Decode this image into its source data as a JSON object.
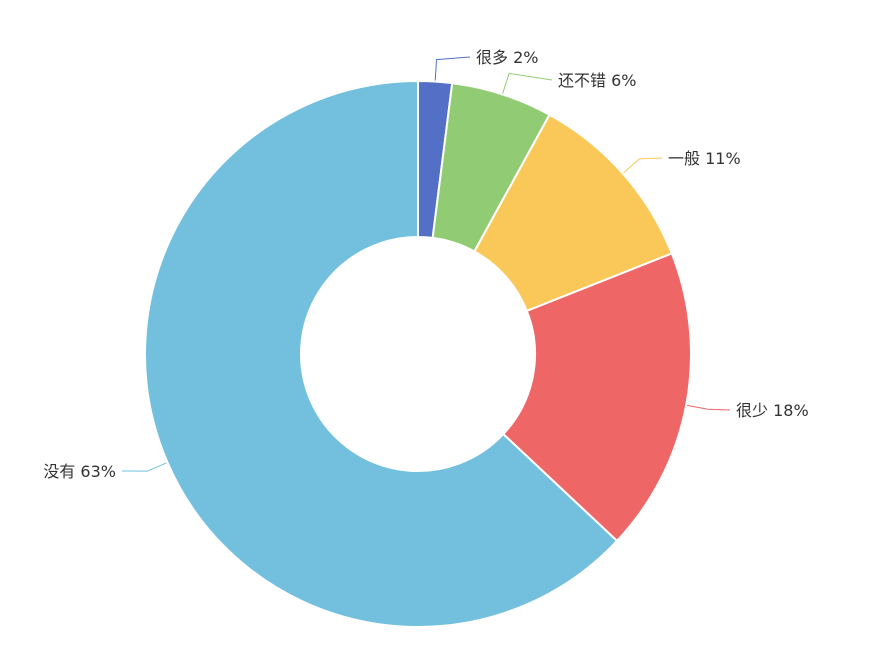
{
  "chart_data": {
    "type": "pie",
    "donut": true,
    "start_angle_deg": 90,
    "direction": "clockwise",
    "slices": [
      {
        "label": "很多",
        "percent_label": "2%",
        "value": 2,
        "color": "#5470c6"
      },
      {
        "label": "还不错",
        "percent_label": "6%",
        "value": 6,
        "color": "#91cc75"
      },
      {
        "label": "一般",
        "percent_label": "11%",
        "value": 11,
        "color": "#fac858"
      },
      {
        "label": "很少",
        "percent_label": "18%",
        "value": 18,
        "color": "#ee6666"
      },
      {
        "label": "没有",
        "percent_label": "63%",
        "value": 63,
        "color": "#73c0de"
      }
    ]
  }
}
